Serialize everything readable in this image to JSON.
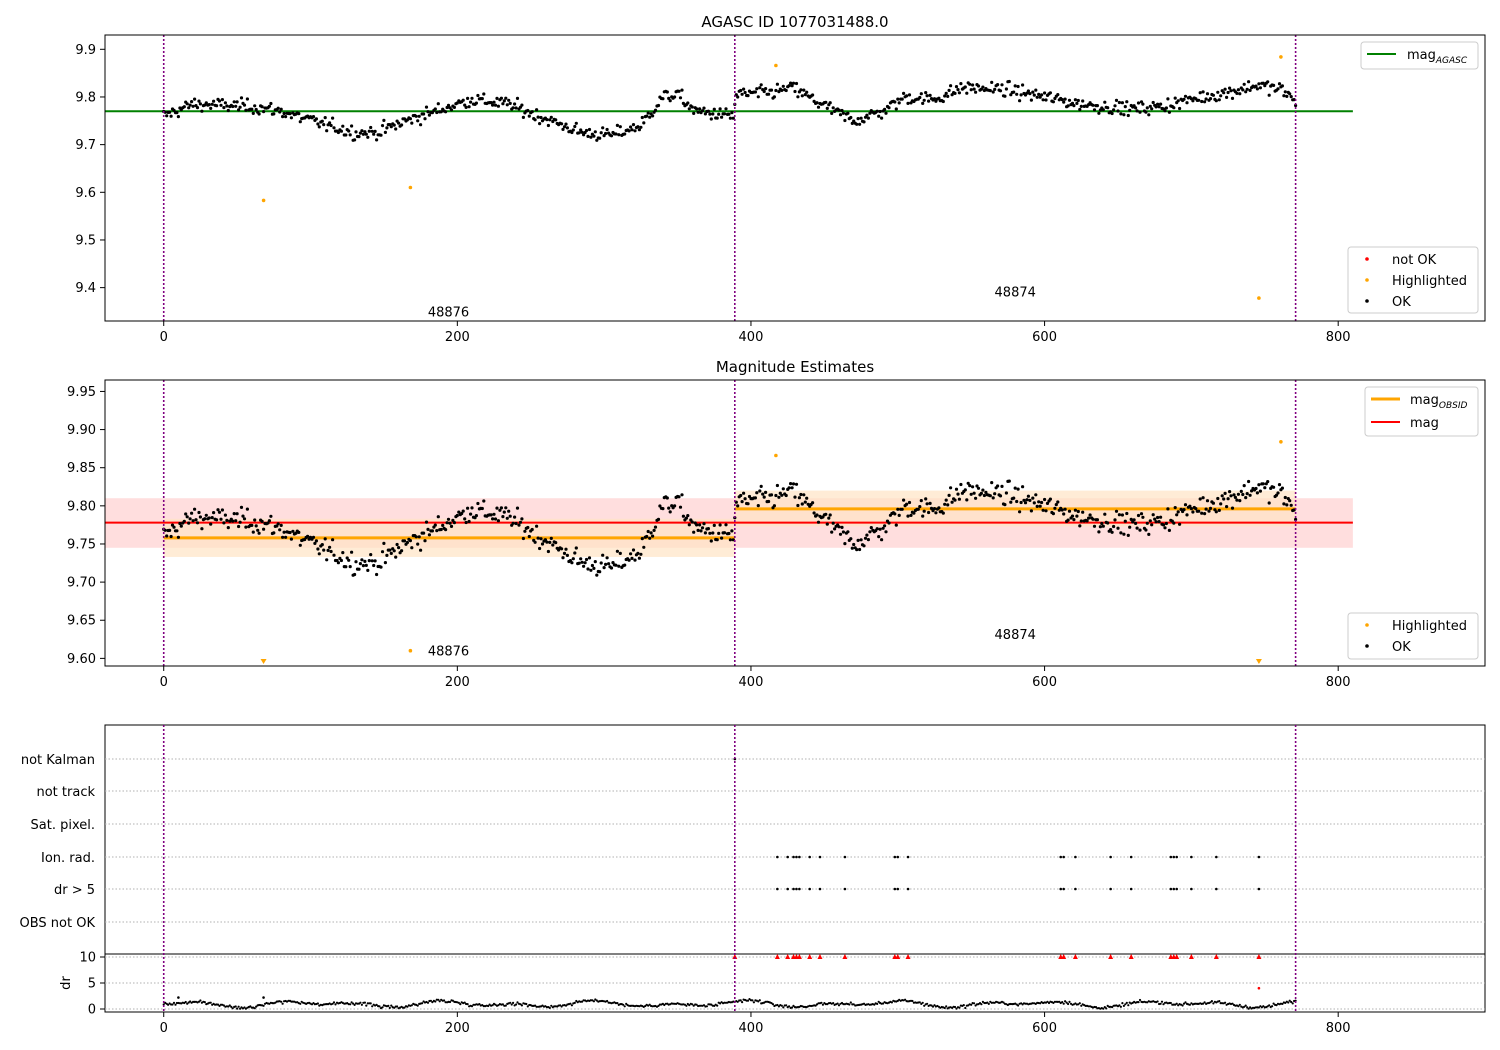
{
  "figure": {
    "top_title": "AGASC ID 1077031488.0",
    "middle_title": "Magnitude Estimates"
  },
  "colors": {
    "agasc_line": "#008000",
    "mag_line": "#ff0000",
    "mag_band": "#ffcccc",
    "obsid_line": "#ffa500",
    "obsid_band": "#ffe4c4",
    "ok_points": "#000000",
    "highlighted_points": "#ffa500",
    "not_ok_points": "#ff0000",
    "obs_boundary": "#800080",
    "grid": "#b0b0b0"
  },
  "chart_data": [
    {
      "type": "scatter",
      "title": "AGASC ID 1077031488.0",
      "xlim": [
        -40,
        900
      ],
      "ylim": [
        9.33,
        9.93
      ],
      "xticks": [
        "0",
        "200",
        "400",
        "600",
        "800"
      ],
      "yticks": [
        "9.4",
        "9.5",
        "9.6",
        "9.7",
        "9.8",
        "9.9"
      ],
      "agasc_mag": {
        "label": "mag",
        "label_sub": "AGASC",
        "value": 9.77,
        "x_range": [
          -40,
          810
        ]
      },
      "obs_boundaries": [
        0,
        389,
        771
      ],
      "obsid_labels": [
        {
          "text": "48876",
          "x": 194,
          "y": 9.35
        },
        {
          "text": "48874",
          "x": 580,
          "y": 9.392
        }
      ],
      "series": [
        {
          "name": "not OK",
          "color": "#ff0000",
          "count": 0
        },
        {
          "name": "Highlighted",
          "color": "#ffa500",
          "points": [
            [
              68,
              9.583
            ],
            [
              168,
              9.61
            ],
            [
              417,
              9.866
            ],
            [
              761,
              9.884
            ],
            [
              746,
              9.378
            ]
          ]
        },
        {
          "name": "OK",
          "color": "#000000",
          "n": 772,
          "trend_knots": [
            [
              0,
              9.76
            ],
            [
              20,
              9.785
            ],
            [
              60,
              9.78
            ],
            [
              80,
              9.77
            ],
            [
              95,
              9.755
            ],
            [
              130,
              9.725
            ],
            [
              145,
              9.725
            ],
            [
              165,
              9.75
            ],
            [
              185,
              9.77
            ],
            [
              210,
              9.795
            ],
            [
              235,
              9.785
            ],
            [
              255,
              9.76
            ],
            [
              285,
              9.725
            ],
            [
              305,
              9.72
            ],
            [
              325,
              9.74
            ],
            [
              340,
              9.8
            ],
            [
              350,
              9.805
            ],
            [
              362,
              9.77
            ],
            [
              388,
              9.76
            ],
            [
              390,
              9.805
            ],
            [
              415,
              9.81
            ],
            [
              428,
              9.82
            ],
            [
              445,
              9.79
            ],
            [
              460,
              9.765
            ],
            [
              470,
              9.75
            ],
            [
              490,
              9.77
            ],
            [
              505,
              9.8
            ],
            [
              525,
              9.795
            ],
            [
              545,
              9.82
            ],
            [
              575,
              9.815
            ],
            [
              600,
              9.8
            ],
            [
              625,
              9.785
            ],
            [
              640,
              9.78
            ],
            [
              660,
              9.775
            ],
            [
              680,
              9.78
            ],
            [
              700,
              9.795
            ],
            [
              725,
              9.81
            ],
            [
              745,
              9.825
            ],
            [
              762,
              9.815
            ],
            [
              771,
              9.79
            ]
          ]
        }
      ],
      "legend_top": {
        "placement": "top-right",
        "entries": [
          {
            "label": "mag",
            "sub": "AGASC"
          }
        ]
      },
      "legend_bottom": {
        "placement": "bottom-right",
        "entries": [
          "not OK",
          "Highlighted",
          "OK"
        ]
      }
    },
    {
      "type": "scatter",
      "title": "Magnitude Estimates",
      "xlim": [
        -40,
        900
      ],
      "ylim": [
        9.59,
        9.965
      ],
      "xticks": [
        "0",
        "200",
        "400",
        "600",
        "800"
      ],
      "yticks": [
        "9.60",
        "9.65",
        "9.70",
        "9.75",
        "9.80",
        "9.85",
        "9.90",
        "9.95"
      ],
      "mag": {
        "label": "mag",
        "value": 9.778,
        "band": [
          9.745,
          9.81
        ],
        "x_range": [
          -40,
          810
        ]
      },
      "mag_obsid": [
        {
          "label": "mag",
          "sub": "OBSID",
          "value": 9.758,
          "band": [
            9.733,
            9.783
          ],
          "x_range": [
            0,
            389
          ]
        },
        {
          "label": "mag",
          "sub": "OBSID",
          "value": 9.796,
          "band": [
            9.773,
            9.82
          ],
          "x_range": [
            389,
            771
          ]
        }
      ],
      "obsid_labels": [
        {
          "text": "48876",
          "x": 194,
          "y": 9.61
        },
        {
          "text": "48874",
          "x": 580,
          "y": 9.632
        }
      ],
      "series": [
        {
          "name": "Highlighted",
          "color": "#ffa500",
          "points": [
            [
              168,
              9.61
            ],
            [
              417,
              9.866
            ],
            [
              761,
              9.884
            ]
          ],
          "below_axis_markers": [
            68,
            746
          ]
        },
        {
          "name": "OK",
          "color": "#000000",
          "n": 772
        }
      ],
      "legend_top": {
        "placement": "top-right",
        "entries": [
          {
            "label": "mag",
            "sub": "OBSID"
          },
          {
            "label": "mag"
          }
        ]
      },
      "legend_bottom": {
        "placement": "bottom-right",
        "entries": [
          "Highlighted",
          "OK"
        ]
      }
    },
    {
      "type": "scatter",
      "title": "",
      "xlim": [
        -40,
        900
      ],
      "flag_labels": [
        "not Kalman",
        "not track",
        "Sat. pixel.",
        "Ion. rad.",
        "dr > 5",
        "OBS not OK"
      ],
      "flag_points": {
        "not Kalman": [
          389
        ],
        "not track": [],
        "Sat. pixel.": [],
        "Ion. rad.": [
          418,
          425,
          429,
          431,
          433,
          440,
          447,
          464,
          498,
          500,
          507,
          611,
          613,
          621,
          645,
          659,
          686,
          688,
          690,
          700,
          717,
          746
        ],
        "dr > 5": [
          418,
          425,
          429,
          431,
          433,
          440,
          447,
          464,
          498,
          500,
          507,
          611,
          613,
          621,
          645,
          659,
          686,
          688,
          690,
          700,
          717,
          746
        ],
        "OBS not OK": []
      },
      "dr": {
        "ylabel": "dr",
        "yticks": [
          "0",
          "5",
          "10"
        ],
        "ylim": [
          -0.5,
          10.5
        ],
        "clip": 10,
        "clipped_x": [
          389,
          418,
          425,
          429,
          431,
          433,
          440,
          447,
          464,
          498,
          500,
          507,
          611,
          613,
          621,
          645,
          659,
          686,
          688,
          690,
          700,
          717,
          746
        ],
        "extra_points": [
          [
            746,
            4.0
          ],
          [
            10,
            2.2
          ],
          [
            68,
            2.2
          ]
        ]
      },
      "xticks": [
        "0",
        "200",
        "400",
        "600",
        "800"
      ]
    }
  ]
}
